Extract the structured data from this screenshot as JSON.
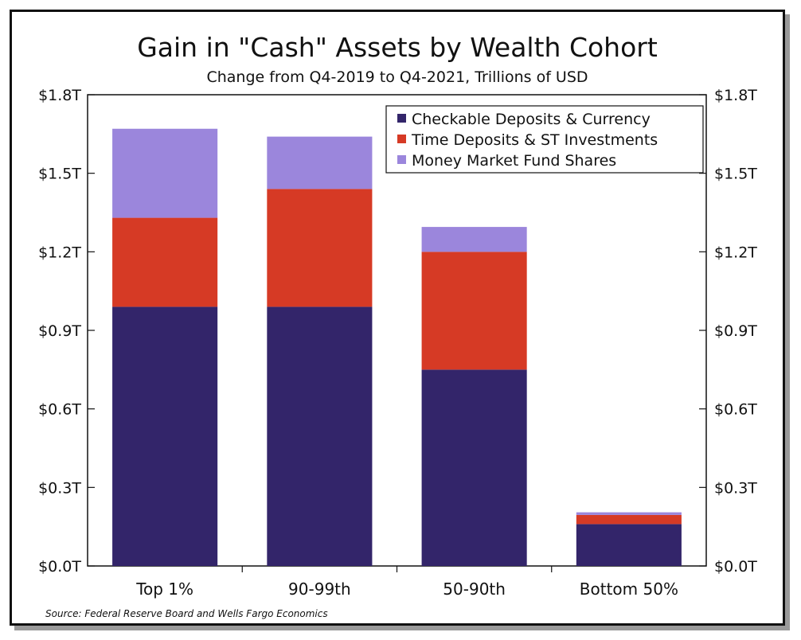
{
  "chart_data": {
    "type": "bar",
    "stacked": true,
    "title": "Gain in \"Cash\" Assets by Wealth Cohort",
    "subtitle": "Change from Q4-2019 to Q4-2021, Trillions of USD",
    "categories": [
      "Top 1%",
      "90-99th",
      "50-90th",
      "Bottom 50%"
    ],
    "series": [
      {
        "name": "Checkable Deposits & Currency",
        "color": "#33256a",
        "values": [
          0.99,
          0.99,
          0.75,
          0.16
        ]
      },
      {
        "name": "Time Deposits & ST Investments",
        "color": "#d63a25",
        "values": [
          0.34,
          0.45,
          0.45,
          0.035
        ]
      },
      {
        "name": "Money Market Fund Shares",
        "color": "#9b86dc",
        "values": [
          0.34,
          0.2,
          0.095,
          0.01
        ]
      }
    ],
    "ylim": [
      0,
      1.8
    ],
    "y_ticks": [
      "$0.0T",
      "$0.3T",
      "$0.6T",
      "$0.9T",
      "$1.2T",
      "$1.5T",
      "$1.8T"
    ],
    "y_tick_values": [
      0,
      0.3,
      0.6,
      0.9,
      1.2,
      1.5,
      1.8
    ],
    "right_axis": true,
    "grid": false,
    "legend_position": "top-right",
    "source": "Source: Federal Reserve Board and Wells Fargo Economics"
  }
}
